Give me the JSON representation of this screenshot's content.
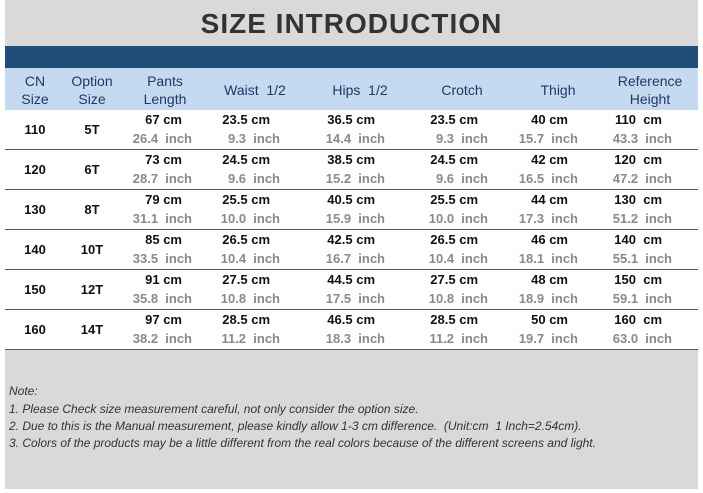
{
  "header": {
    "title": "SIZE INTRODUCTION"
  },
  "table": {
    "columns": [
      [
        "CN",
        "Size"
      ],
      [
        "Option",
        "Size"
      ],
      [
        "Pants",
        "Length"
      ],
      [
        "Waist  1/2"
      ],
      [
        "Hips  1/2"
      ],
      [
        "Crotch"
      ],
      [
        "Thigh"
      ],
      [
        "Reference",
        "Height"
      ]
    ],
    "rows": [
      {
        "size": "110",
        "option": "5T",
        "cells": [
          [
            "67 cm",
            "26.4  inch"
          ],
          [
            "23.5 cm",
            "9.3  inch"
          ],
          [
            "36.5 cm",
            "14.4  inch"
          ],
          [
            "23.5 cm",
            "9.3  inch"
          ],
          [
            "40 cm",
            "15.7  inch"
          ],
          [
            "110  cm",
            "43.3  inch"
          ]
        ]
      },
      {
        "size": "120",
        "option": "6T",
        "cells": [
          [
            "73 cm",
            "28.7  inch"
          ],
          [
            "24.5 cm",
            "9.6  inch"
          ],
          [
            "38.5 cm",
            "15.2  inch"
          ],
          [
            "24.5 cm",
            "9.6  inch"
          ],
          [
            "42 cm",
            "16.5  inch"
          ],
          [
            "120  cm",
            "47.2  inch"
          ]
        ]
      },
      {
        "size": "130",
        "option": "8T",
        "cells": [
          [
            "79 cm",
            "31.1  inch"
          ],
          [
            "25.5 cm",
            "10.0  inch"
          ],
          [
            "40.5 cm",
            "15.9  inch"
          ],
          [
            "25.5 cm",
            "10.0  inch"
          ],
          [
            "44 cm",
            "17.3  inch"
          ],
          [
            "130  cm",
            "51.2  inch"
          ]
        ]
      },
      {
        "size": "140",
        "option": "10T",
        "cells": [
          [
            "85 cm",
            "33.5  inch"
          ],
          [
            "26.5 cm",
            "10.4  inch"
          ],
          [
            "42.5 cm",
            "16.7  inch"
          ],
          [
            "26.5 cm",
            "10.4  inch"
          ],
          [
            "46 cm",
            "18.1  inch"
          ],
          [
            "140  cm",
            "55.1  inch"
          ]
        ]
      },
      {
        "size": "150",
        "option": "12T",
        "cells": [
          [
            "91 cm",
            "35.8  inch"
          ],
          [
            "27.5 cm",
            "10.8  inch"
          ],
          [
            "44.5 cm",
            "17.5  inch"
          ],
          [
            "27.5 cm",
            "10.8  inch"
          ],
          [
            "48 cm",
            "18.9  inch"
          ],
          [
            "150  cm",
            "59.1  inch"
          ]
        ]
      },
      {
        "size": "160",
        "option": "14T",
        "cells": [
          [
            "97 cm",
            "38.2  inch"
          ],
          [
            "28.5 cm",
            "11.2  inch"
          ],
          [
            "46.5 cm",
            "18.3  inch"
          ],
          [
            "28.5 cm",
            "11.2  inch"
          ],
          [
            "50 cm",
            "19.7  inch"
          ],
          [
            "160  cm",
            "63.0  inch"
          ]
        ]
      }
    ]
  },
  "notes": {
    "heading": "Note:",
    "lines": [
      "1. Please Check size measurement careful, not only consider the option size.",
      "2. Due to this is the Manual measurement, please kindly allow 1-3 cm difference.  (Unit:cm  1 Inch=2.54cm).",
      "3. Colors of the products may be a little different from the real colors because of the different screens and light."
    ]
  }
}
